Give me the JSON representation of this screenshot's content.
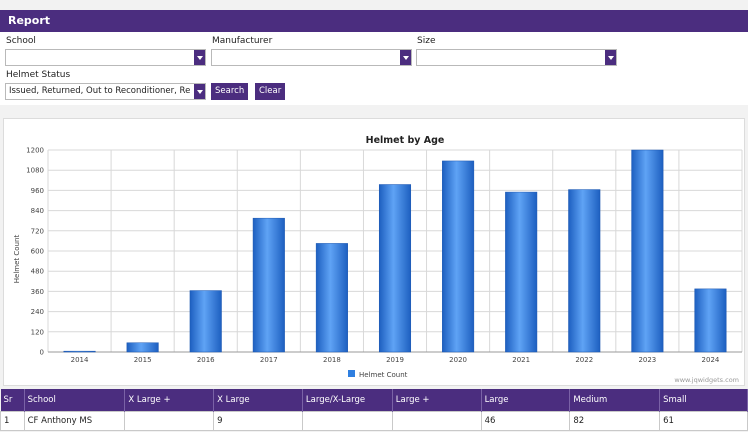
{
  "header": {
    "title": "Report"
  },
  "filters": {
    "school": {
      "label": "School",
      "value": ""
    },
    "manufacturer": {
      "label": "Manufacturer",
      "value": ""
    },
    "size": {
      "label": "Size",
      "value": ""
    },
    "helmet_status": {
      "label": "Helmet Status",
      "value": "Issued, Returned, Out to Reconditioner, Re"
    },
    "search_label": "Search",
    "clear_label": "Clear"
  },
  "chart_data": {
    "type": "bar",
    "title": "Helmet by Age",
    "xlabel": "",
    "ylabel": "Helmet Count",
    "categories": [
      "2014",
      "2015",
      "2016",
      "2017",
      "2018",
      "2019",
      "2020",
      "2021",
      "2022",
      "2023",
      "2024"
    ],
    "series": [
      {
        "name": "Helmet Count",
        "values": [
          5,
          55,
          365,
          795,
          645,
          995,
          1135,
          950,
          965,
          1200,
          375
        ]
      }
    ],
    "ylim": [
      0,
      1200
    ],
    "yticks": [
      "0",
      "120",
      "240",
      "360",
      "480",
      "600",
      "720",
      "840",
      "960",
      "1080",
      "1200"
    ],
    "grid": true,
    "legend": "bottom-center",
    "bar_color": "#2f7fe0",
    "watermark": "www.jqwidgets.com"
  },
  "table": {
    "columns": [
      "Sr",
      "School",
      "X Large +",
      "X Large",
      "Large/X-Large",
      "Large +",
      "Large",
      "Medium",
      "Small"
    ],
    "rows": [
      [
        "1",
        "CF Anthony MS",
        "",
        "9",
        "",
        "",
        "46",
        "82",
        "61"
      ]
    ]
  }
}
